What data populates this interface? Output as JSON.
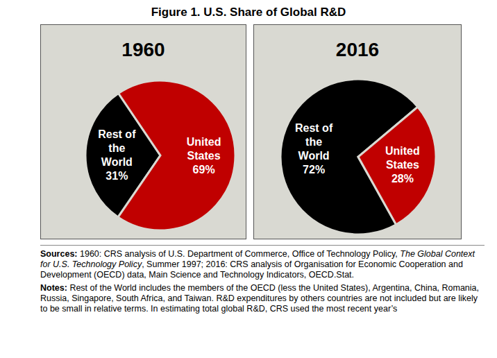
{
  "title": "Figure 1. U.S. Share of Global R&D",
  "chart_data": [
    {
      "type": "pie",
      "title": "1960",
      "categories": [
        "Rest of the World",
        "United States"
      ],
      "values": [
        31,
        69
      ],
      "value_labels": [
        "31%",
        "69%"
      ],
      "colors": [
        "#000000",
        "#c00000"
      ],
      "data_labels": true
    },
    {
      "type": "pie",
      "title": "2016",
      "categories": [
        "Rest of the World",
        "United States"
      ],
      "values": [
        72,
        28
      ],
      "value_labels": [
        "72%",
        "28%"
      ],
      "colors": [
        "#000000",
        "#c00000"
      ],
      "data_labels": true
    }
  ],
  "sources": {
    "label": "Sources:",
    "parts": [
      {
        "text": "1960: CRS analysis of U.S. Department of Commerce, Office of Technology Policy, ",
        "italic": false
      },
      {
        "text": "The Global Context for U.S. Technology Policy",
        "italic": true
      },
      {
        "text": ", Summer 1997; 2016: CRS analysis of Organisation for Economic Cooperation and Development (OECD) data, Main Science and Technology Indicators, OECD.Stat.",
        "italic": false
      }
    ]
  },
  "notes": {
    "label": "Notes:",
    "text": "Rest of the World includes the members of the OECD (less the United States), Argentina, China, Romania, Russia, Singapore, South Africa, and Taiwan. R&D expenditures by others countries are not included but are likely to be small in relative terms. In estimating total global R&D, CRS used the most recent year’s"
  }
}
